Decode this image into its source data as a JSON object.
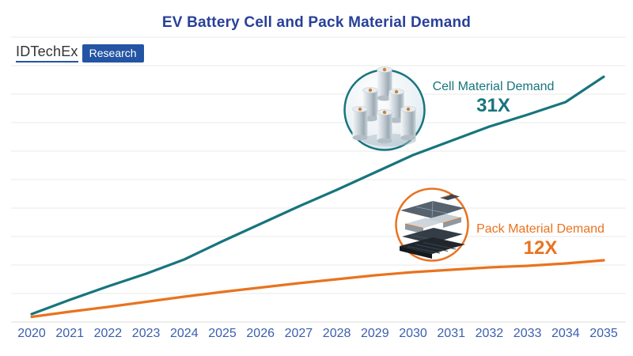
{
  "title": "EV Battery Cell and Pack Material Demand",
  "logo": {
    "brand": "IDTechEx",
    "division": "Research"
  },
  "icons": {
    "cell_badge": "cylindrical-battery-cells-photo",
    "pack_badge": "exploded-battery-pack-photo"
  },
  "colors": {
    "title_blue": "#28409a",
    "axis_label_blue": "#3a5fb0",
    "gridline": "#e9e9e9",
    "cell_teal": "#17757d",
    "pack_orange": "#e9731f",
    "logo_badge_blue": "#2454a4"
  },
  "chart_data": {
    "type": "line",
    "title": "EV Battery Cell and Pack Material Demand",
    "x": [
      2020,
      2021,
      2022,
      2023,
      2024,
      2025,
      2026,
      2027,
      2028,
      2029,
      2030,
      2031,
      2032,
      2033,
      2034,
      2035
    ],
    "xlabel": "",
    "ylabel": "",
    "y_axis_labels_visible": false,
    "ylim": [
      0,
      36
    ],
    "grid": "horizontal",
    "series": [
      {
        "name": "Cell Material Demand",
        "growth_label": "31X",
        "color": "#17757d",
        "values": [
          1.0,
          2.8,
          4.5,
          6.1,
          7.9,
          10.2,
          12.4,
          14.6,
          16.7,
          18.9,
          21.1,
          22.9,
          24.7,
          26.2,
          27.8,
          31.0
        ]
      },
      {
        "name": "Pack Material Demand",
        "growth_label": "12X",
        "color": "#e9731f",
        "values": [
          0.65,
          1.3,
          1.9,
          2.55,
          3.2,
          3.8,
          4.35,
          4.9,
          5.4,
          5.9,
          6.3,
          6.6,
          6.9,
          7.1,
          7.4,
          7.8
        ]
      }
    ],
    "annotations": [
      {
        "series": "Cell Material Demand",
        "text": "31X",
        "meaning": "growth multiple 2020 to 2035"
      },
      {
        "series": "Pack Material Demand",
        "text": "12X",
        "meaning": "growth multiple 2020 to 2035"
      }
    ],
    "legend_position": "inline annotations with icon badges"
  }
}
